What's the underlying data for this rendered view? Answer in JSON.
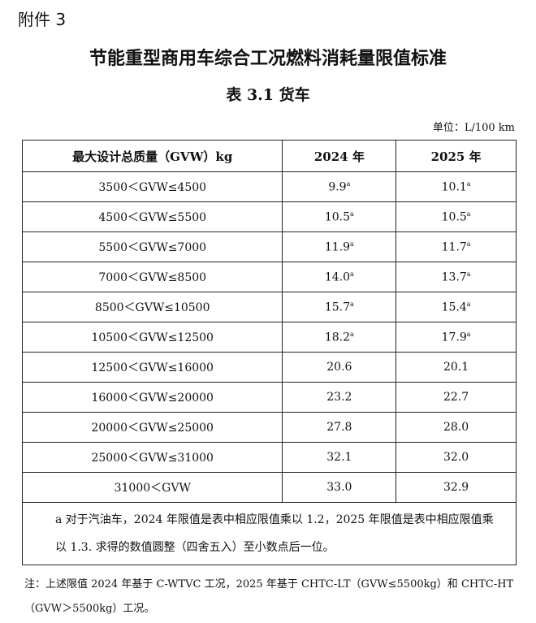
{
  "header": {
    "attachment": "附件 3",
    "title": "节能重型商用车综合工况燃料消耗量限值标准",
    "subtitle": "表 3.1 货车",
    "unit": "单位：L/100 km"
  },
  "table": {
    "columns": [
      "最大设计总质量（GVW）kg",
      "2024 年",
      "2025 年"
    ],
    "rows": [
      [
        "3500＜GVW≤4500",
        {
          "value": "9.9",
          "mark": "a"
        },
        {
          "value": "10.1",
          "mark": "a"
        }
      ],
      [
        "4500＜GVW≤5500",
        {
          "value": "10.5",
          "mark": "a"
        },
        {
          "value": "10.5",
          "mark": "a"
        }
      ],
      [
        "5500＜GVW≤7000",
        {
          "value": "11.9",
          "mark": "a"
        },
        {
          "value": "11.7",
          "mark": "a"
        }
      ],
      [
        "7000＜GVW≤8500",
        {
          "value": "14.0",
          "mark": "a"
        },
        {
          "value": "13.7",
          "mark": "a"
        }
      ],
      [
        "8500＜GVW≤10500",
        {
          "value": "15.7",
          "mark": "a"
        },
        {
          "value": "15.4",
          "mark": "a"
        }
      ],
      [
        "10500＜GVW≤12500",
        {
          "value": "18.2",
          "mark": "a"
        },
        {
          "value": "17.9",
          "mark": "a"
        }
      ],
      [
        "12500＜GVW≤16000",
        {
          "value": "20.6"
        },
        {
          "value": "20.1"
        }
      ],
      [
        "16000＜GVW≤20000",
        {
          "value": "23.2"
        },
        {
          "value": "22.7"
        }
      ],
      [
        "20000＜GVW≤25000",
        {
          "value": "27.8"
        },
        {
          "value": "28.0"
        }
      ],
      [
        "25000＜GVW≤31000",
        {
          "value": "32.1"
        },
        {
          "value": "32.0"
        }
      ],
      [
        "31000＜GVW",
        {
          "value": "33.0"
        },
        {
          "value": "32.9"
        }
      ]
    ],
    "footnote": "a 对于汽油车，2024 年限值是表中相应限值乘以 1.2，2025 年限值是表中相应限值乘以 1.3. 求得的数值圆整（四舍五入）至小数点后一位。"
  },
  "note": "注：上述限值 2024 年基于 C-WTVC 工况，2025 年基于 CHTC-LT（GVW≤5500kg）和 CHTC-HT（GVW＞5500kg）工况。"
}
